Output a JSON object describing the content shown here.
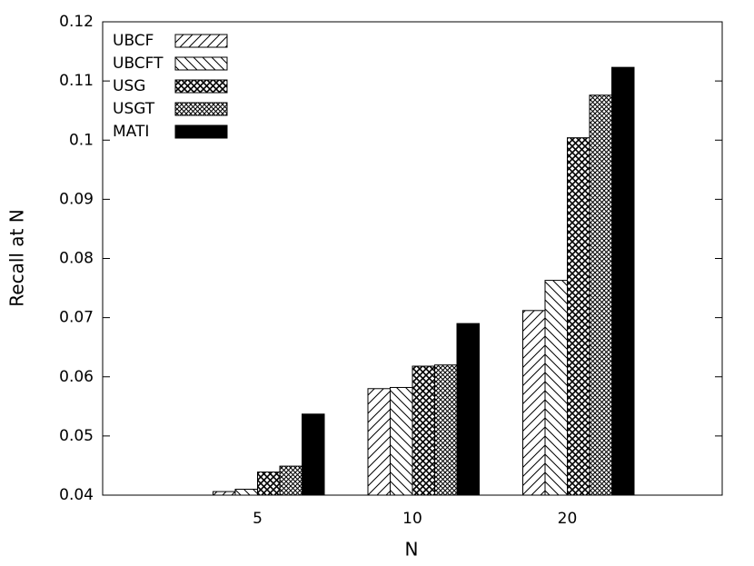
{
  "chart_data": {
    "type": "bar",
    "x_label": "N",
    "y_label": "Recall at N",
    "categories": [
      "5",
      "10",
      "20"
    ],
    "series": [
      {
        "name": "UBCF",
        "color": "#000000",
        "pattern": "diagonal-up",
        "values": [
          0.0406,
          0.058,
          0.0712
        ]
      },
      {
        "name": "UBCFT",
        "color": "#000000",
        "pattern": "diagonal-down",
        "values": [
          0.041,
          0.0582,
          0.0763
        ]
      },
      {
        "name": "USG",
        "color": "#000000",
        "pattern": "crosshatch",
        "values": [
          0.0439,
          0.0618,
          0.1004
        ]
      },
      {
        "name": "USGT",
        "color": "#000000",
        "pattern": "fine-crosshatch",
        "values": [
          0.0449,
          0.062,
          0.1076
        ]
      },
      {
        "name": "MATI",
        "color": "#000000",
        "pattern": "solid",
        "values": [
          0.0537,
          0.069,
          0.1123
        ]
      }
    ],
    "ylim": [
      0.04,
      0.12
    ],
    "yticks": [
      0.04,
      0.05,
      0.06,
      0.07,
      0.08,
      0.09,
      0.1,
      0.11,
      0.12
    ],
    "legend": "top-left"
  }
}
